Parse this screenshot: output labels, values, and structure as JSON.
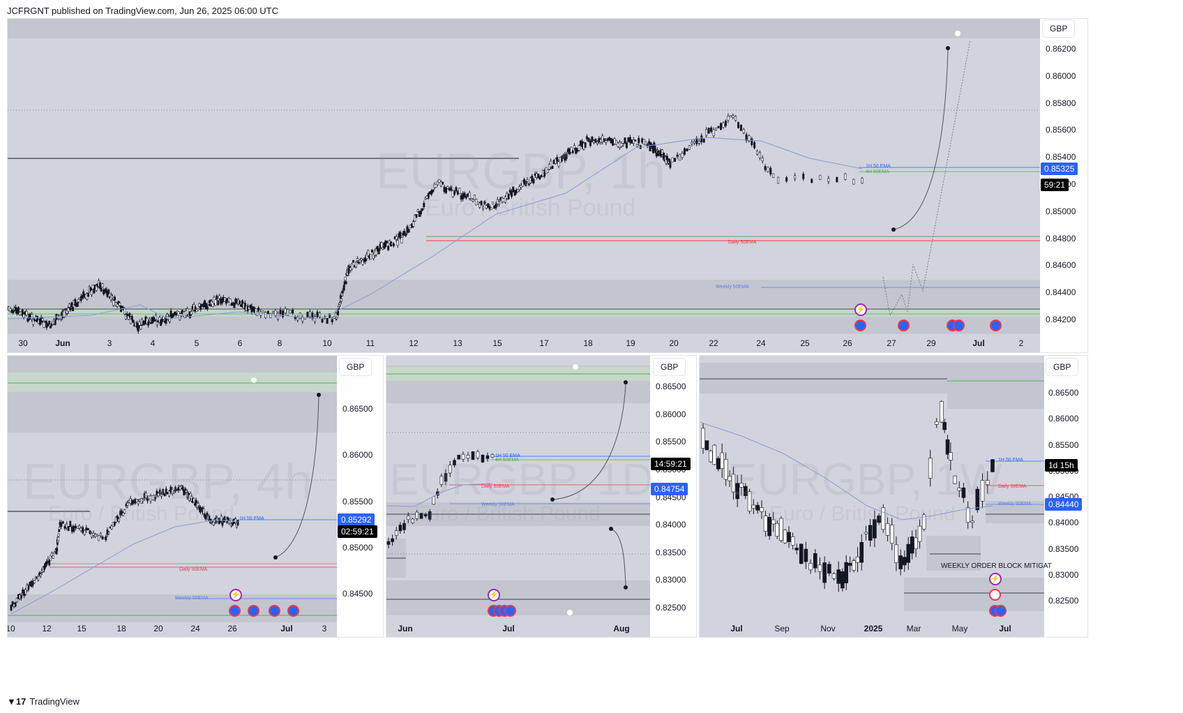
{
  "header": {
    "published": "JCFRGNT published on TradingView.com, Jun 26, 2025 06:00 UTC"
  },
  "footer": {
    "brand": "TradingView",
    "logo_icon": "tradingview-logo-icon"
  },
  "colors": {
    "pane_bg": "#d1d4dc",
    "zone": "#c3c6cf",
    "candle": "#131722",
    "ema": "#8c9bd9",
    "blue_tag": "#2962ff",
    "black_tag": "#000000",
    "green_line": "#4caf50",
    "red_line": "#f23645"
  },
  "main": {
    "currency": "GBP",
    "watermark_symbol": "EURGBP, 1h",
    "watermark_name": "Euro / British Pound",
    "price_labels": [
      "0.86200",
      "0.86000",
      "0.85800",
      "0.85600",
      "0.85400",
      "0.85200",
      "0.85000",
      "0.84800",
      "0.84600",
      "0.84400",
      "0.84200"
    ],
    "time_labels": [
      "30",
      "Jun",
      "3",
      "4",
      "5",
      "6",
      "8",
      "10",
      "11",
      "12",
      "13",
      "15",
      "17",
      "18",
      "19",
      "20",
      "22",
      "24",
      "25",
      "26",
      "27",
      "29",
      "Jul",
      "2"
    ],
    "last_price": "0.85325",
    "countdown": "59:21",
    "ema_1h": "1H 50 EMA",
    "ema_4h": "4H 50EMA",
    "ema_daily": "Daily 50EMA",
    "ema_weekly": "Weekly 50EMA"
  },
  "pane_4h": {
    "currency": "GBP",
    "watermark_symbol": "EURGBP, 4h",
    "watermark_name": "Euro / British Pound",
    "price_labels": [
      "0.86500",
      "0.86000",
      "0.85500",
      "0.85000",
      "0.84500"
    ],
    "time_labels": [
      "10",
      "12",
      "15",
      "18",
      "20",
      "24",
      "26",
      "Jul",
      "3"
    ],
    "last_price": "0.85292",
    "countdown": "02:59:21",
    "ema_daily": "Daily 50EMA",
    "ema_weekly": "Weekly 50EMA",
    "ema_1h": "1H 50 EMA"
  },
  "pane_1d": {
    "currency": "GBP",
    "watermark_symbol": "EURGBP, 1D",
    "watermark_name": "Euro / British Pound",
    "price_labels": [
      "0.86500",
      "0.86000",
      "0.85500",
      "0.85000",
      "0.84500",
      "0.84000",
      "0.83500",
      "0.83000",
      "0.82500"
    ],
    "time_labels": [
      "Jun",
      "Jul",
      "Aug"
    ],
    "countdown": "14:59:21",
    "ema_price": "0.84754",
    "ema_1h": "1H 50 EMA",
    "ema_4h": "4H 50EMA",
    "ema_daily": "Daily 50EMA",
    "ema_weekly": "Weekly 50EMA"
  },
  "pane_1w": {
    "currency": "GBP",
    "watermark_symbol": "EURGBP, 1W",
    "watermark_name": "Euro / British Pound",
    "price_labels": [
      "0.86500",
      "0.86000",
      "0.85500",
      "0.85000",
      "0.84500",
      "0.84000",
      "0.83500",
      "0.83000",
      "0.82500"
    ],
    "time_labels": [
      "Jul",
      "Sep",
      "Nov",
      "2025",
      "Mar",
      "May",
      "Jul"
    ],
    "countdown": "1d 15h",
    "ema_price": "0.84440",
    "ema_1h": "1H 50 EMA",
    "ema_daily": "Daily 50EMA",
    "ema_weekly": "Weekly 50EMA",
    "note": "WEEKLY ORDER BLOCK MITIGAT"
  }
}
